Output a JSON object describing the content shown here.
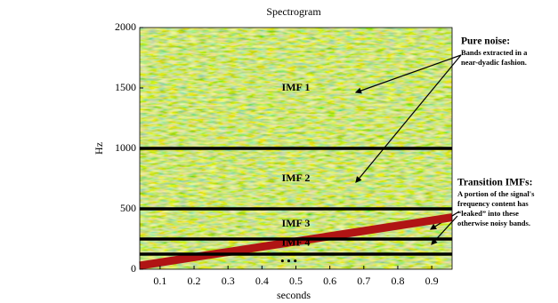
{
  "chart_data": {
    "type": "spectrogram",
    "title": "Spectrogram",
    "xlabel": "seconds",
    "ylabel": "Hz",
    "xlim": [
      0.04,
      0.96
    ],
    "ylim": [
      0,
      2000
    ],
    "xticks": [
      0.1,
      0.2,
      0.3,
      0.4,
      0.5,
      0.6,
      0.7,
      0.8,
      0.9
    ],
    "yticks": [
      0,
      500,
      1000,
      1500,
      2000
    ],
    "boundaries": {
      "values": [
        1000,
        500,
        250,
        125
      ],
      "color": "#000000"
    },
    "chirp": {
      "x": [
        0.04,
        0.96
      ],
      "values": [
        30,
        430
      ],
      "color": "#b01414"
    },
    "regions": [
      "IMF 1",
      "IMF 2",
      "IMF 3",
      "IMF 4",
      "• • •"
    ],
    "annotations": [
      {
        "title": "Pure noise:",
        "lines": [
          "Bands extracted in a",
          "near-dyadic fashion."
        ]
      },
      {
        "title": "Transition IMFs:",
        "lines": [
          "A portion of the signal's",
          "frequency content has",
          "“leaked” into these",
          "otherwise noisy bands."
        ]
      }
    ]
  }
}
